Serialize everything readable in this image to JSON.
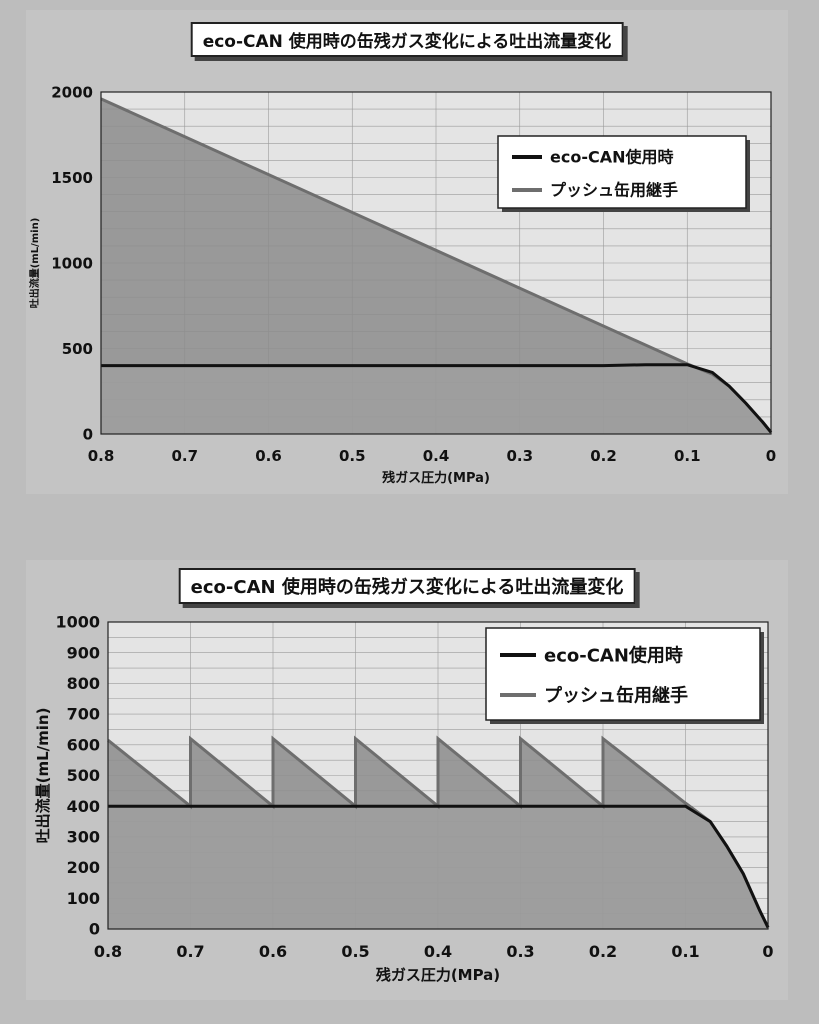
{
  "chart_data": [
    {
      "type": "area",
      "title": "eco-CAN 使用時の缶残ガス変化による吐出流量変化",
      "xlabel": "残ガス圧力(MPa)",
      "ylabel": "吐出流量(mL/min)",
      "xlim": [
        0.8,
        0
      ],
      "ylim": [
        0,
        2000
      ],
      "x_ticks": [
        "0.8",
        "0.7",
        "0.6",
        "0.5",
        "0.4",
        "0.3",
        "0.2",
        "0.1",
        "0"
      ],
      "y_ticks": [
        "0",
        "500",
        "1000",
        "1500",
        "2000"
      ],
      "grid": true,
      "legend_position": "top-right",
      "series": [
        {
          "name": "eco-CAN使用時",
          "color": "#111111",
          "points": [
            [
              0.8,
              400
            ],
            [
              0.2,
              400
            ],
            [
              0.15,
              405
            ],
            [
              0.1,
              405
            ],
            [
              0.07,
              360
            ],
            [
              0.05,
              280
            ],
            [
              0.03,
              180
            ],
            [
              0.01,
              70
            ],
            [
              0,
              10
            ]
          ]
        },
        {
          "name": "プッシュ缶用継手",
          "color": "#6e6e6e",
          "points": [
            [
              0.8,
              1960
            ],
            [
              0.1,
              410
            ],
            [
              0.07,
              350
            ],
            [
              0.05,
              280
            ],
            [
              0.03,
              180
            ],
            [
              0.01,
              70
            ],
            [
              0,
              10
            ]
          ]
        }
      ]
    },
    {
      "type": "area",
      "title": "eco-CAN 使用時の缶残ガス変化による吐出流量変化",
      "xlabel": "残ガス圧力(MPa)",
      "ylabel": "吐出流量(mL/min)",
      "xlim": [
        0.8,
        0
      ],
      "ylim": [
        0,
        1000
      ],
      "x_ticks": [
        "0.8",
        "0.7",
        "0.6",
        "0.5",
        "0.4",
        "0.3",
        "0.2",
        "0.1",
        "0"
      ],
      "y_ticks": [
        "0",
        "100",
        "200",
        "300",
        "400",
        "500",
        "600",
        "700",
        "800",
        "900",
        "1000"
      ],
      "grid": true,
      "legend_position": "top-right",
      "series": [
        {
          "name": "eco-CAN使用時",
          "color": "#111111",
          "points": [
            [
              0.8,
              400
            ],
            [
              0.1,
              400
            ],
            [
              0.07,
              350
            ],
            [
              0.05,
              270
            ],
            [
              0.03,
              180
            ],
            [
              0.01,
              60
            ],
            [
              0,
              5
            ]
          ]
        },
        {
          "name": "プッシュ缶用継手",
          "color": "#6e6e6e",
          "points": [
            [
              0.8,
              615
            ],
            [
              0.7,
              400
            ],
            [
              0.7,
              620
            ],
            [
              0.6,
              400
            ],
            [
              0.6,
              620
            ],
            [
              0.5,
              400
            ],
            [
              0.5,
              620
            ],
            [
              0.4,
              400
            ],
            [
              0.4,
              620
            ],
            [
              0.3,
              400
            ],
            [
              0.3,
              620
            ],
            [
              0.2,
              400
            ],
            [
              0.2,
              620
            ],
            [
              0.1,
              410
            ],
            [
              0.07,
              350
            ],
            [
              0.05,
              270
            ],
            [
              0.03,
              180
            ],
            [
              0.01,
              60
            ],
            [
              0,
              5
            ]
          ]
        }
      ]
    }
  ]
}
